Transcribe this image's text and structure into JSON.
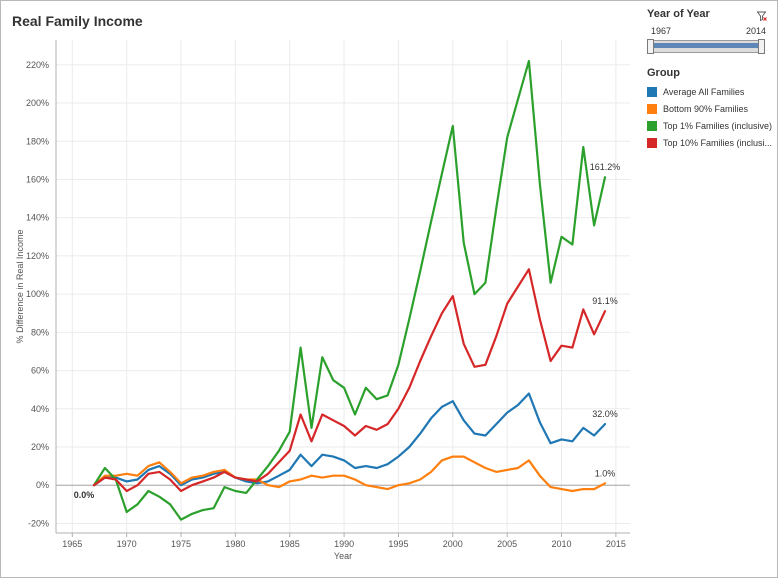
{
  "window": {
    "title": "Real Family Income"
  },
  "filter": {
    "title": "Year of Year",
    "min_label": "1967",
    "max_label": "2014",
    "range": [
      1967,
      2014
    ],
    "clear_icon": "clear-filter-icon"
  },
  "legend": {
    "title": "Group",
    "items": [
      {
        "label": "Average All Families",
        "color": "#1f77b4"
      },
      {
        "label": "Bottom 90% Families",
        "color": "#ff7f0e"
      },
      {
        "label": "Top 1% Families (inclusive)",
        "color": "#2ca02c"
      },
      {
        "label": "Top 10% Families (inclusi...",
        "color": "#d62728"
      }
    ]
  },
  "chart_data": {
    "type": "line",
    "title": "Real Family Income",
    "xlabel": "Year",
    "ylabel": "% Difference in Real Income",
    "xlim": [
      1963.5,
      2016.3
    ],
    "ylim": [
      -25,
      233
    ],
    "x_ticks": [
      "1965",
      "1970",
      "1975",
      "1980",
      "1985",
      "1990",
      "1995",
      "2000",
      "2005",
      "2010",
      "2015"
    ],
    "y_ticks": [
      "-20%",
      "0%",
      "20%",
      "40%",
      "60%",
      "80%",
      "100%",
      "120%",
      "140%",
      "160%",
      "180%",
      "200%",
      "220%"
    ],
    "grid": true,
    "legend": "right",
    "x": [
      1967,
      1968,
      1969,
      1970,
      1971,
      1972,
      1973,
      1974,
      1975,
      1976,
      1977,
      1978,
      1979,
      1980,
      1981,
      1982,
      1983,
      1984,
      1985,
      1986,
      1987,
      1988,
      1989,
      1990,
      1991,
      1992,
      1993,
      1994,
      1995,
      1996,
      1997,
      1998,
      1999,
      2000,
      2001,
      2002,
      2003,
      2004,
      2005,
      2006,
      2007,
      2008,
      2009,
      2010,
      2011,
      2012,
      2013,
      2014
    ],
    "series": [
      {
        "name": "Average All Families",
        "color": "#1f77b4",
        "values": [
          0,
          4,
          4,
          2,
          3,
          8,
          10,
          6,
          0,
          3,
          4,
          6,
          7,
          4,
          2,
          1,
          2,
          5,
          8,
          16,
          10,
          16,
          15,
          13,
          9,
          10,
          9,
          11,
          15,
          20,
          27,
          35,
          41,
          44,
          34,
          27,
          26,
          32,
          38,
          42,
          48,
          33,
          22,
          24,
          23,
          30,
          26,
          32.0
        ],
        "end_label": "32.0%"
      },
      {
        "name": "Bottom 90% Families",
        "color": "#ff7f0e",
        "values": [
          0,
          5,
          5,
          6,
          5,
          10,
          12,
          7,
          1,
          4,
          5,
          7,
          8,
          4,
          3,
          3,
          0,
          -1,
          2,
          3,
          5,
          4,
          5,
          5,
          3,
          0,
          -1,
          -2,
          0,
          1,
          3,
          7,
          13,
          15,
          15,
          12,
          9,
          7,
          8,
          9,
          13,
          5,
          -1,
          -2,
          -3,
          -2,
          -2,
          1.0
        ],
        "end_label": "1.0%"
      },
      {
        "name": "Top 1% Families (inclusive)",
        "color": "#2ca02c",
        "values": [
          0,
          9,
          3,
          -14,
          -10,
          -3,
          -6,
          -10,
          -18,
          -15,
          -13,
          -12,
          -1,
          -3,
          -4,
          3,
          10,
          18,
          28,
          72,
          30,
          67,
          55,
          51,
          37,
          51,
          45,
          47,
          63,
          87,
          112,
          138,
          163,
          188,
          127,
          100,
          106,
          145,
          182,
          202,
          222,
          158,
          106,
          130,
          126,
          177,
          136,
          161.2
        ],
        "end_label": "161.2%"
      },
      {
        "name": "Top 10% Families (inclusi...",
        "color": "#d62728",
        "values": [
          0,
          4,
          3,
          -3,
          0,
          6,
          7,
          3,
          -3,
          0,
          2,
          4,
          7,
          4,
          3,
          2,
          6,
          12,
          18,
          37,
          23,
          37,
          34,
          31,
          26,
          31,
          29,
          32,
          40,
          51,
          65,
          78,
          90,
          99,
          74,
          62,
          63,
          78,
          95,
          104,
          113,
          87,
          65,
          73,
          72,
          92,
          79,
          91.1
        ],
        "end_label": "91.1%"
      }
    ],
    "annotations": [
      {
        "x": 1967,
        "y": 0,
        "text": "0.0%"
      }
    ]
  }
}
